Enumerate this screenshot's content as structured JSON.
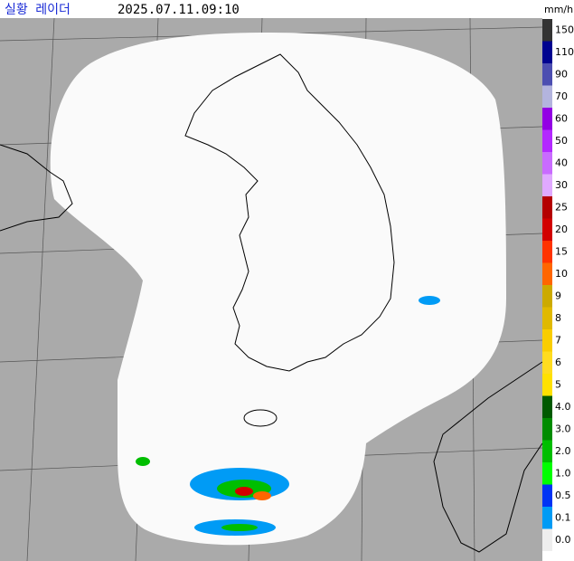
{
  "header": {
    "title": "실황 레이더",
    "timestamp": "2025.07.11.09:10"
  },
  "legend": {
    "unit": "mm/h",
    "levels": [
      {
        "label": "150",
        "color": "#333333"
      },
      {
        "label": "110",
        "color": "#000390"
      },
      {
        "label": "90",
        "color": "#4c4eb1"
      },
      {
        "label": "70",
        "color": "#b3b4de"
      },
      {
        "label": "60",
        "color": "#9300e4"
      },
      {
        "label": "50",
        "color": "#b329ff"
      },
      {
        "label": "40",
        "color": "#c96bff"
      },
      {
        "label": "30",
        "color": "#e0a9ff"
      },
      {
        "label": "25",
        "color": "#b40000"
      },
      {
        "label": "20",
        "color": "#d20000"
      },
      {
        "label": "15",
        "color": "#ff3300"
      },
      {
        "label": "10",
        "color": "#ff6600"
      },
      {
        "label": "9",
        "color": "#ccaa00"
      },
      {
        "label": "8",
        "color": "#e0b900"
      },
      {
        "label": "7",
        "color": "#f9cd00"
      },
      {
        "label": "6",
        "color": "#ffdc1f"
      },
      {
        "label": "5",
        "color": "#ffe100"
      },
      {
        "label": "4.0",
        "color": "#005a00"
      },
      {
        "label": "3.0",
        "color": "#008c00"
      },
      {
        "label": "2.0",
        "color": "#00be00"
      },
      {
        "label": "1.0",
        "color": "#00ff00"
      },
      {
        "label": "0.5",
        "color": "#0033f5"
      },
      {
        "label": "0.1",
        "color": "#009bf5"
      },
      {
        "label": "0.0",
        "color": "#eeeeee"
      }
    ]
  }
}
